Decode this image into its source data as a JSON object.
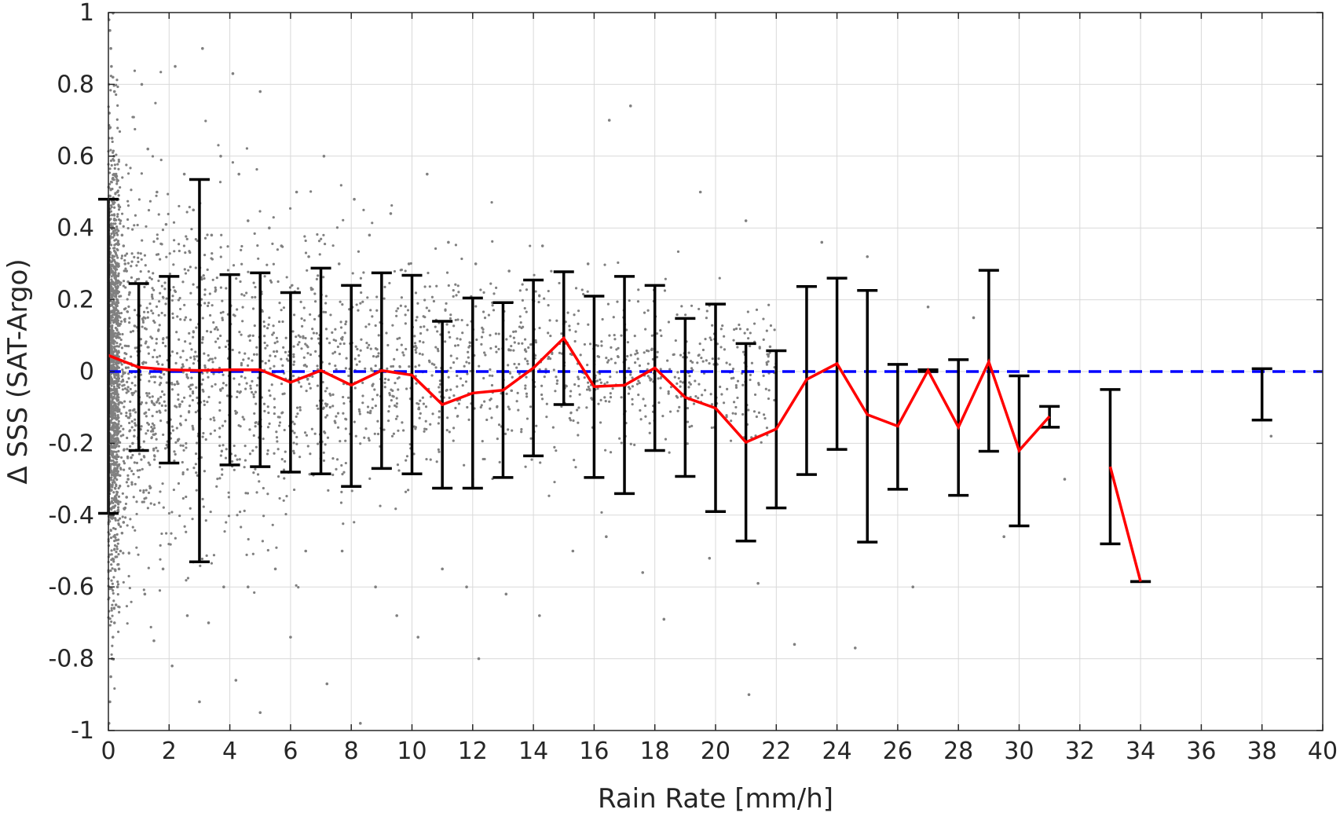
{
  "chart_data": {
    "type": "scatter",
    "xlabel": "Rain Rate [mm/h]",
    "ylabel": "Δ SSS (SAT-Argo)",
    "xlim": [
      0,
      40
    ],
    "ylim": [
      -1,
      1
    ],
    "xticks": [
      0,
      2,
      4,
      6,
      8,
      10,
      12,
      14,
      16,
      18,
      20,
      22,
      24,
      26,
      28,
      30,
      32,
      34,
      36,
      38,
      40
    ],
    "yticks": [
      -1,
      -0.8,
      -0.6,
      -0.4,
      -0.2,
      0,
      0.2,
      0.4,
      0.6,
      0.8,
      1
    ],
    "ytick_labels": [
      "-1",
      "-0.8",
      "-0.6",
      "-0.4",
      "-0.2",
      "0",
      "0.2",
      "0.4",
      "0.6",
      "0.8",
      "1"
    ],
    "grid": true,
    "colors": {
      "scatter": "#808080",
      "mean_line": "#ff0000",
      "error_bars": "#000000",
      "zero_line": "#0000ff"
    },
    "reference_line": {
      "y": 0,
      "style": "dashed"
    },
    "binned": [
      {
        "x": 0,
        "mean": 0.045,
        "lower": -0.395,
        "upper": 0.48
      },
      {
        "x": 1,
        "mean": 0.012,
        "lower": -0.22,
        "upper": 0.245
      },
      {
        "x": 2,
        "mean": 0.005,
        "lower": -0.255,
        "upper": 0.265
      },
      {
        "x": 3,
        "mean": 0.003,
        "lower": -0.53,
        "upper": 0.535
      },
      {
        "x": 4,
        "mean": 0.005,
        "lower": -0.26,
        "upper": 0.27
      },
      {
        "x": 5,
        "mean": 0.005,
        "lower": -0.265,
        "upper": 0.275
      },
      {
        "x": 6,
        "mean": -0.03,
        "lower": -0.28,
        "upper": 0.22
      },
      {
        "x": 7,
        "mean": 0.003,
        "lower": -0.285,
        "upper": 0.288
      },
      {
        "x": 8,
        "mean": -0.038,
        "lower": -0.32,
        "upper": 0.24
      },
      {
        "x": 9,
        "mean": 0.003,
        "lower": -0.27,
        "upper": 0.275
      },
      {
        "x": 10,
        "mean": -0.01,
        "lower": -0.285,
        "upper": 0.268
      },
      {
        "x": 11,
        "mean": -0.092,
        "lower": -0.325,
        "upper": 0.14
      },
      {
        "x": 12,
        "mean": -0.06,
        "lower": -0.325,
        "upper": 0.205
      },
      {
        "x": 13,
        "mean": -0.052,
        "lower": -0.295,
        "upper": 0.192
      },
      {
        "x": 14,
        "mean": 0.01,
        "lower": -0.235,
        "upper": 0.255
      },
      {
        "x": 15,
        "mean": 0.093,
        "lower": -0.092,
        "upper": 0.278
      },
      {
        "x": 16,
        "mean": -0.042,
        "lower": -0.295,
        "upper": 0.21
      },
      {
        "x": 17,
        "mean": -0.038,
        "lower": -0.34,
        "upper": 0.265
      },
      {
        "x": 18,
        "mean": 0.01,
        "lower": -0.22,
        "upper": 0.24
      },
      {
        "x": 19,
        "mean": -0.072,
        "lower": -0.292,
        "upper": 0.148
      },
      {
        "x": 20,
        "mean": -0.102,
        "lower": -0.39,
        "upper": 0.188
      },
      {
        "x": 21,
        "mean": -0.197,
        "lower": -0.472,
        "upper": 0.078
      },
      {
        "x": 22,
        "mean": -0.16,
        "lower": -0.38,
        "upper": 0.058
      },
      {
        "x": 23,
        "mean": -0.022,
        "lower": -0.287,
        "upper": 0.237
      },
      {
        "x": 24,
        "mean": 0.022,
        "lower": -0.217,
        "upper": 0.26
      },
      {
        "x": 25,
        "mean": -0.12,
        "lower": -0.475,
        "upper": 0.226
      },
      {
        "x": 26,
        "mean": -0.152,
        "lower": -0.328,
        "upper": 0.02
      },
      {
        "x": 27,
        "mean": 0.003,
        "lower": 0.0,
        "upper": 0.005
      },
      {
        "x": 28,
        "mean": -0.155,
        "lower": -0.345,
        "upper": 0.033
      },
      {
        "x": 29,
        "mean": 0.027,
        "lower": -0.222,
        "upper": 0.282
      },
      {
        "x": 30,
        "mean": -0.22,
        "lower": -0.43,
        "upper": -0.012
      },
      {
        "x": 31,
        "mean": -0.125,
        "lower": -0.155,
        "upper": -0.097
      },
      {
        "x": 33,
        "mean": -0.265,
        "lower": -0.48,
        "upper": -0.05
      },
      {
        "x": 34,
        "mean": -0.585,
        "lower": -0.585,
        "upper": -0.585
      },
      {
        "x": 38,
        "mean": null,
        "lower": -0.135,
        "upper": 0.008
      }
    ],
    "mean_line_segments": [
      [
        0,
        1,
        2,
        3,
        4,
        5,
        6,
        7,
        8,
        9,
        10,
        11,
        12,
        13,
        14,
        15,
        16,
        17,
        18,
        19,
        20,
        21,
        22,
        23,
        24,
        25,
        26,
        27,
        28,
        29,
        30,
        31
      ],
      [
        33,
        34
      ]
    ],
    "scatter_points": [
      [
        0.02,
        0.98
      ],
      [
        0.05,
        0.95
      ],
      [
        0.08,
        0.9
      ],
      [
        0.1,
        0.85
      ],
      [
        0.15,
        0.82
      ],
      [
        0.2,
        0.78
      ],
      [
        0.03,
        0.72
      ],
      [
        0.06,
        0.68
      ],
      [
        0.12,
        0.65
      ],
      [
        0.18,
        0.6
      ],
      [
        0.25,
        0.55
      ],
      [
        0.3,
        0.5
      ],
      [
        0.35,
        0.46
      ],
      [
        0.4,
        0.42
      ],
      [
        0.45,
        0.38
      ],
      [
        0.5,
        0.35
      ],
      [
        0.55,
        0.3
      ],
      [
        0.6,
        0.28
      ],
      [
        0.65,
        0.25
      ],
      [
        0.7,
        0.22
      ],
      [
        0.02,
        -0.98
      ],
      [
        0.05,
        -0.92
      ],
      [
        0.08,
        -0.85
      ],
      [
        0.12,
        -0.8
      ],
      [
        0.15,
        -0.74
      ],
      [
        0.2,
        -0.7
      ],
      [
        0.25,
        -0.65
      ],
      [
        0.3,
        -0.6
      ],
      [
        0.35,
        -0.55
      ],
      [
        0.4,
        -0.5
      ],
      [
        0.45,
        -0.45
      ],
      [
        0.5,
        -0.42
      ],
      [
        0.55,
        -0.38
      ],
      [
        0.6,
        -0.35
      ],
      [
        0.65,
        -0.3
      ],
      [
        0.7,
        -0.27
      ],
      [
        0.75,
        -0.24
      ],
      [
        0.8,
        -0.2
      ],
      [
        0.85,
        -0.18
      ],
      [
        0.9,
        -0.15
      ],
      [
        1.1,
        0.8
      ],
      [
        1.3,
        0.62
      ],
      [
        1.6,
        0.5
      ],
      [
        1.9,
        0.41
      ],
      [
        2.2,
        0.85
      ],
      [
        2.5,
        0.55
      ],
      [
        2.8,
        0.45
      ],
      [
        3.1,
        0.9
      ],
      [
        3.4,
        0.38
      ],
      [
        3.7,
        0.6
      ],
      [
        4.1,
        0.83
      ],
      [
        4.3,
        0.55
      ],
      [
        4.6,
        0.42
      ],
      [
        5.0,
        0.78
      ],
      [
        5.3,
        0.4
      ],
      [
        5.7,
        0.35
      ],
      [
        6.2,
        0.5
      ],
      [
        6.6,
        0.32
      ],
      [
        7.1,
        0.6
      ],
      [
        7.6,
        0.3
      ],
      [
        8.1,
        0.48
      ],
      [
        8.6,
        0.38
      ],
      [
        9.3,
        0.44
      ],
      [
        9.9,
        0.3
      ],
      [
        10.5,
        0.55
      ],
      [
        11.2,
        0.36
      ],
      [
        12.1,
        0.3
      ],
      [
        13.2,
        0.28
      ],
      [
        14.3,
        0.35
      ],
      [
        15.8,
        0.3
      ],
      [
        17.2,
        0.74
      ],
      [
        16.5,
        0.7
      ],
      [
        21.0,
        0.42
      ],
      [
        19.5,
        0.5
      ],
      [
        23.5,
        0.36
      ],
      [
        25.0,
        0.32
      ],
      [
        27.0,
        0.18
      ],
      [
        28.5,
        0.15
      ],
      [
        1.2,
        -0.62
      ],
      [
        1.5,
        -0.75
      ],
      [
        1.8,
        -0.55
      ],
      [
        2.1,
        -0.82
      ],
      [
        2.6,
        -0.68
      ],
      [
        3.0,
        -0.92
      ],
      [
        3.3,
        -0.7
      ],
      [
        3.8,
        -0.6
      ],
      [
        4.2,
        -0.86
      ],
      [
        4.6,
        -0.6
      ],
      [
        5.0,
        -0.95
      ],
      [
        5.5,
        -0.55
      ],
      [
        6.0,
        -0.74
      ],
      [
        6.5,
        -0.5
      ],
      [
        7.2,
        -0.87
      ],
      [
        7.7,
        -0.5
      ],
      [
        8.3,
        -0.98
      ],
      [
        8.8,
        -0.6
      ],
      [
        9.5,
        -0.68
      ],
      [
        10.2,
        -0.74
      ],
      [
        11.0,
        -0.55
      ],
      [
        11.8,
        -0.6
      ],
      [
        12.2,
        -0.8
      ],
      [
        13.1,
        -0.62
      ],
      [
        14.2,
        -0.68
      ],
      [
        15.3,
        -0.5
      ],
      [
        16.4,
        -0.46
      ],
      [
        17.6,
        -0.56
      ],
      [
        18.3,
        -0.69
      ],
      [
        19.8,
        -0.52
      ],
      [
        21.1,
        -0.9
      ],
      [
        21.4,
        -0.59
      ],
      [
        22.6,
        -0.76
      ],
      [
        24.6,
        -0.77
      ],
      [
        26.5,
        -0.6
      ],
      [
        29.5,
        -0.46
      ],
      [
        31.5,
        -0.3
      ],
      [
        38.3,
        -0.18
      ]
    ]
  }
}
